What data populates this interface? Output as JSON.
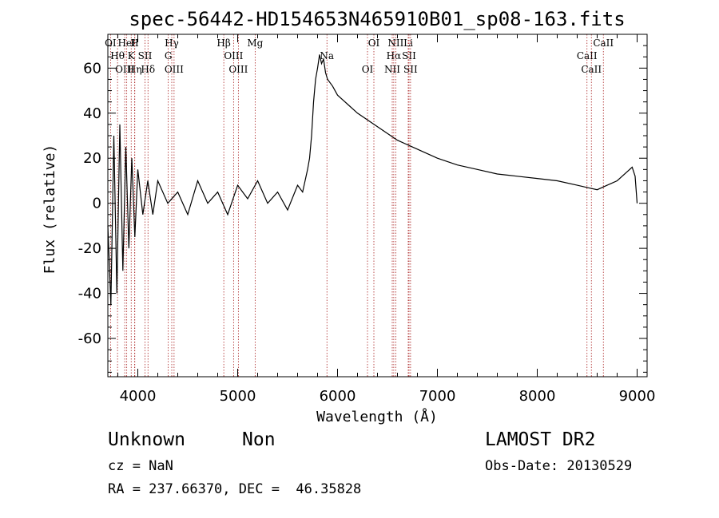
{
  "chart_data": {
    "type": "line",
    "title": "spec-56442-HD154653N465910B01_sp08-163.fits",
    "xlabel": "Wavelength (Å)",
    "ylabel": "Flux (relative)",
    "xlim": [
      3700,
      9100
    ],
    "ylim": [
      -77,
      75
    ],
    "xticks": [
      4000,
      5000,
      6000,
      7000,
      8000,
      9000
    ],
    "yticks": [
      -60,
      -40,
      -20,
      0,
      20,
      40,
      60
    ],
    "grid": false,
    "series": [
      {
        "x": [
          3700,
          3730,
          3760,
          3790,
          3820,
          3850,
          3880,
          3910,
          3940,
          3970,
          4000,
          4050,
          4100,
          4150,
          4200,
          4300,
          4400,
          4500,
          4600,
          4700,
          4800,
          4900,
          5000,
          5100,
          5200,
          5300,
          5400,
          5500,
          5600,
          5650,
          5700,
          5720,
          5740,
          5760,
          5780,
          5800,
          5820,
          5840,
          5860,
          5880,
          5900,
          5950,
          6000,
          6100,
          6200,
          6300,
          6400,
          6500,
          6600,
          6700,
          6800,
          6900,
          7000,
          7200,
          7400,
          7600,
          7800,
          8000,
          8200,
          8400,
          8500,
          8600,
          8700,
          8800,
          8900,
          8950,
          8980,
          9000
        ],
        "y": [
          -10,
          -45,
          30,
          -40,
          35,
          -30,
          25,
          -20,
          20,
          -15,
          15,
          -5,
          10,
          -5,
          10,
          0,
          5,
          -5,
          10,
          0,
          5,
          -5,
          8,
          2,
          10,
          0,
          5,
          -3,
          8,
          5,
          15,
          20,
          30,
          45,
          55,
          60,
          66,
          62,
          64,
          58,
          55,
          52,
          48,
          44,
          40,
          37,
          34,
          31,
          28,
          26,
          24,
          22,
          20,
          17,
          15,
          13,
          12,
          11,
          10,
          8,
          7,
          6,
          8,
          10,
          14,
          16,
          12,
          0
        ]
      }
    ],
    "line_markers": [
      {
        "name": "OI",
        "x": 3727
      },
      {
        "name": "Hθ",
        "x": 3797
      },
      {
        "name": "OIII",
        "x": 3869
      },
      {
        "name": "HeI",
        "x": 3889
      },
      {
        "name": "K",
        "x": 3934
      },
      {
        "name": "Hη",
        "x": 3970
      },
      {
        "name": "H",
        "x": 3968
      },
      {
        "name": "SII",
        "x": 4072
      },
      {
        "name": "Hδ",
        "x": 4102
      },
      {
        "name": "Hγ",
        "x": 4340
      },
      {
        "name": "G",
        "x": 4305
      },
      {
        "name": "OIII",
        "x": 4363
      },
      {
        "name": "Hβ",
        "x": 4861
      },
      {
        "name": "OIII",
        "x": 4959
      },
      {
        "name": "OIII",
        "x": 5007
      },
      {
        "name": "Mg",
        "x": 5175
      },
      {
        "name": "Na",
        "x": 5894
      },
      {
        "name": "OI",
        "x": 6300
      },
      {
        "name": "OI",
        "x": 6364
      },
      {
        "name": "Hα",
        "x": 6563
      },
      {
        "name": "NII",
        "x": 6548
      },
      {
        "name": "NII",
        "x": 6583
      },
      {
        "name": "SII",
        "x": 6716
      },
      {
        "name": "SII",
        "x": 6731
      },
      {
        "name": "Li",
        "x": 6708
      },
      {
        "name": "CaII",
        "x": 8498
      },
      {
        "name": "CaII",
        "x": 8542
      },
      {
        "name": "CaII",
        "x": 8662
      }
    ]
  },
  "info": {
    "class": "Unknown",
    "subclass": "Non",
    "survey": "LAMOST DR2",
    "cz": "cz = NaN",
    "obs_date": "Obs-Date: 20130529",
    "radec": "RA = 237.66370, DEC =  46.35828"
  },
  "colors": {
    "line": "#000000",
    "marker_line": "#aa2222",
    "axes": "#000000"
  }
}
